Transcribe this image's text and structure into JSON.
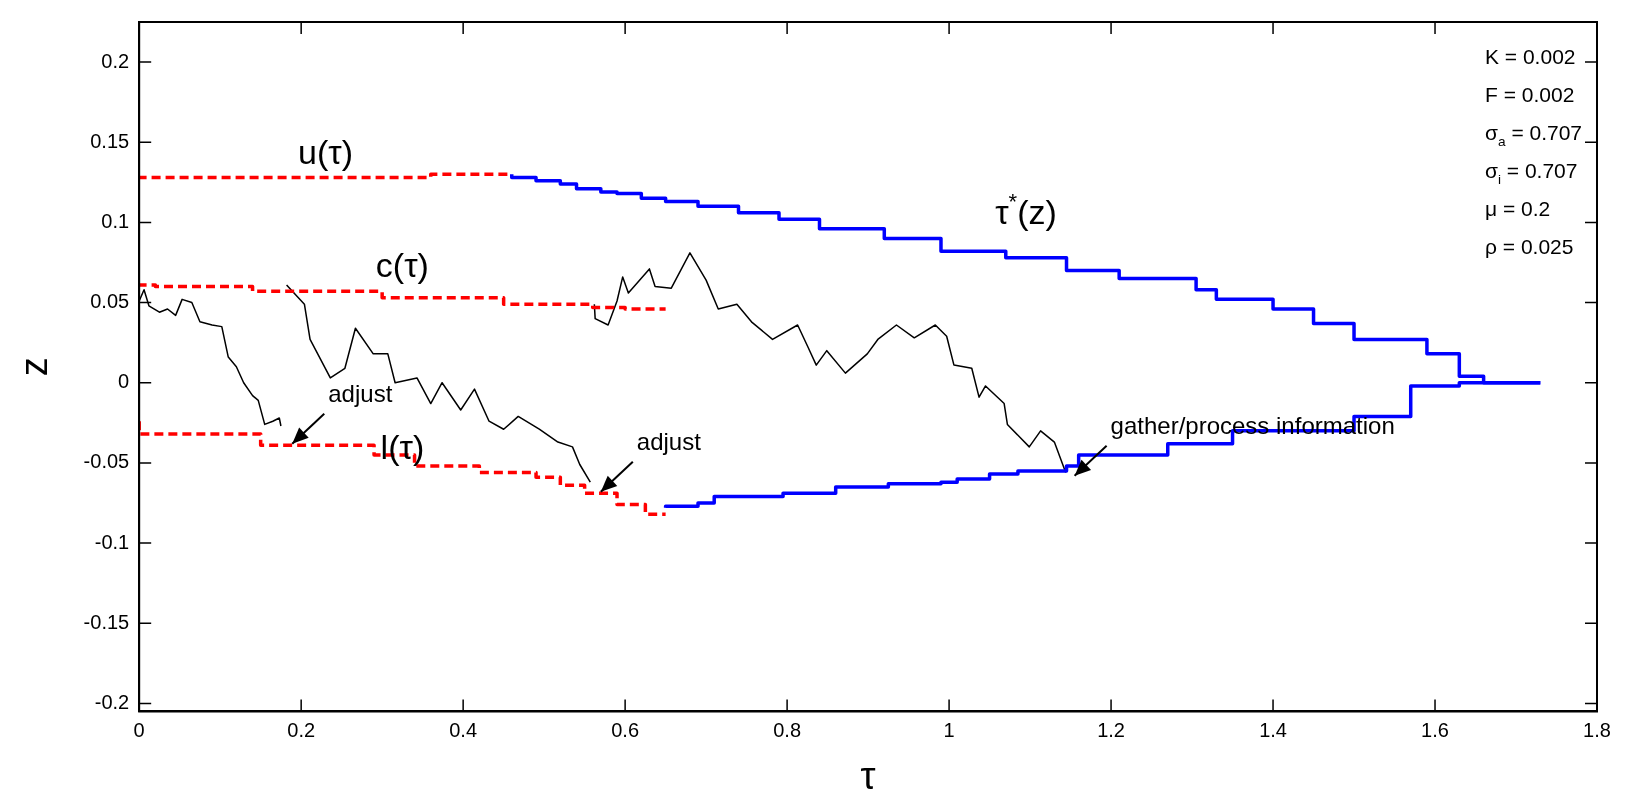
{
  "chart_data": {
    "type": "line",
    "xlabel": "τ",
    "ylabel": "z",
    "xlim": [
      0,
      1.8
    ],
    "xticks": [
      0,
      0.2,
      0.4,
      0.6,
      0.8,
      1,
      1.2,
      1.4,
      1.6,
      1.8
    ],
    "ylim": [
      -0.205,
      0.225
    ],
    "yticks": [
      -0.2,
      -0.15,
      -0.1,
      -0.05,
      0,
      0.05,
      0.1,
      0.15,
      0.2
    ],
    "grid": false,
    "legend": false,
    "marker": "none",
    "series": [
      {
        "name": "u(τ)",
        "type": "step",
        "line_style": "dashed",
        "color": "#ff0000",
        "x": [
          0,
          0.36,
          0.43,
          0.46
        ],
        "values": [
          0.127,
          0.128,
          0.13,
          0.13
        ]
      },
      {
        "name": "c(τ)",
        "type": "step",
        "line_style": "dashed",
        "color": "#ff0000",
        "x": [
          0,
          0.02,
          0.14,
          0.3,
          0.45,
          0.56,
          0.6,
          0.65
        ],
        "values": [
          0.062,
          0.061,
          0.06,
          0.057,
          0.053,
          0.049,
          0.047,
          0.046
        ]
      },
      {
        "name": "l(τ)",
        "type": "step",
        "line_style": "dashed",
        "color": "#ff0000",
        "x": [
          0,
          0.15,
          0.29,
          0.34,
          0.42,
          0.49,
          0.52,
          0.55,
          0.59,
          0.625,
          0.65
        ],
        "values": [
          -0.024,
          -0.032,
          -0.039,
          -0.045,
          -0.052,
          -0.056,
          -0.059,
          -0.064,
          -0.069,
          -0.076,
          -0.082
        ]
      },
      {
        "name": "τ$^{*}$(z)",
        "type": "step",
        "line_style": "solid",
        "color": "#0000ff",
        "x": [
          0.46,
          0.49,
          0.52,
          0.54,
          0.57,
          0.59,
          0.62,
          0.65,
          0.69,
          0.74,
          0.79,
          0.84,
          0.92,
          0.99,
          1.07,
          1.145,
          1.21,
          1.305,
          1.33,
          1.4,
          1.45,
          1.5,
          1.59,
          1.63,
          1.66,
          1.685,
          1.73
        ],
        "values": [
          0.13,
          0.128,
          0.126,
          0.124,
          0.121,
          0.119,
          0.118,
          0.115,
          0.113,
          0.11,
          0.106,
          0.102,
          0.096,
          0.09,
          0.082,
          0.078,
          0.07,
          0.065,
          0.058,
          0.052,
          0.046,
          0.037,
          0.027,
          0.018,
          0.004,
          0,
          0
        ]
      },
      {
        "type": "step",
        "line_style": "solid",
        "color": "#0000ff",
        "x": [
          0.65,
          0.69,
          0.71,
          0.795,
          0.86,
          0.925,
          0.99,
          1.01,
          1.05,
          1.085,
          1.145,
          1.16,
          1.27,
          1.35,
          1.5,
          1.57,
          1.63,
          1.68,
          1.73
        ],
        "values": [
          -0.078,
          -0.077,
          -0.075,
          -0.071,
          -0.069,
          -0.065,
          -0.063,
          -0.062,
          -0.06,
          -0.057,
          -0.055,
          -0.052,
          -0.045,
          -0.038,
          -0.03,
          -0.021,
          -0.002,
          0,
          0
        ]
      },
      {
        "type": "line",
        "line_style": "solid",
        "color": "#000000",
        "x": [
          0,
          0.006,
          0.012,
          0.025,
          0.035,
          0.045,
          0.053,
          0.065,
          0.075,
          0.09,
          0.102,
          0.11,
          0.12,
          0.129,
          0.14,
          0.147,
          0.155,
          0.165,
          0.173,
          0.175,
          0.178,
          0.182,
          0.204,
          0.211,
          0.236,
          0.254,
          0.267,
          0.289,
          0.307,
          0.316,
          0.343,
          0.36,
          0.374,
          0.397,
          0.414,
          0.432,
          0.45,
          0.468,
          0.494,
          0.517,
          0.535,
          0.544,
          0.557,
          0.56,
          0.562,
          0.563,
          0.579,
          0.59,
          0.597,
          0.604,
          0.63,
          0.637,
          0.657,
          0.68,
          0.7,
          0.715,
          0.738,
          0.756,
          0.782,
          0.813,
          0.826,
          0.836,
          0.849,
          0.872,
          0.899,
          0.912,
          0.935,
          0.957,
          0.983,
          0.997,
          1.006,
          1.028,
          1.037,
          1.045,
          1.068,
          1.072,
          1.099,
          1.113,
          1.13,
          1.144
        ],
        "values": [
          0.051,
          0.058,
          0.048,
          0.044,
          0.046,
          0.042,
          0.052,
          0.05,
          0.038,
          0.036,
          0.035,
          0.016,
          0.01,
          0,
          -0.008,
          -0.011,
          -0.026,
          -0.024,
          -0.022,
          -0.027,
          null,
          0.061,
          0.049,
          0.027,
          0.003,
          0.009,
          0.034,
          0.018,
          0.018,
          0,
          0.003,
          -0.013,
          0,
          -0.017,
          -0.004,
          -0.024,
          -0.029,
          -0.021,
          -0.029,
          -0.037,
          -0.04,
          -0.051,
          -0.062,
          null,
          0.049,
          0.04,
          0.036,
          0.051,
          0.066,
          0.056,
          0.071,
          0.06,
          0.059,
          0.081,
          0.064,
          0.046,
          0.049,
          0.038,
          0.027,
          0.036,
          0.022,
          0.011,
          0.02,
          0.006,
          0.018,
          0.027,
          0.036,
          0.028,
          0.036,
          0.029,
          0.011,
          0.009,
          -0.009,
          -0.002,
          -0.013,
          -0.026,
          -0.04,
          -0.03,
          -0.037,
          -0.056
        ]
      }
    ],
    "annotations": [
      {
        "text": "adjust",
        "x": 0.189,
        "y": -0.038
      },
      {
        "text": "adjust",
        "x": 0.57,
        "y": -0.068
      },
      {
        "text": "gather/process information",
        "x": 1.155,
        "y": -0.058
      },
      "K = 0.002",
      "F = 0.002",
      "σ$_{a}$ = 0.707",
      "σ$_{i}$ = 0.707",
      "μ = 0.2",
      "ρ = 0.025"
    ]
  }
}
